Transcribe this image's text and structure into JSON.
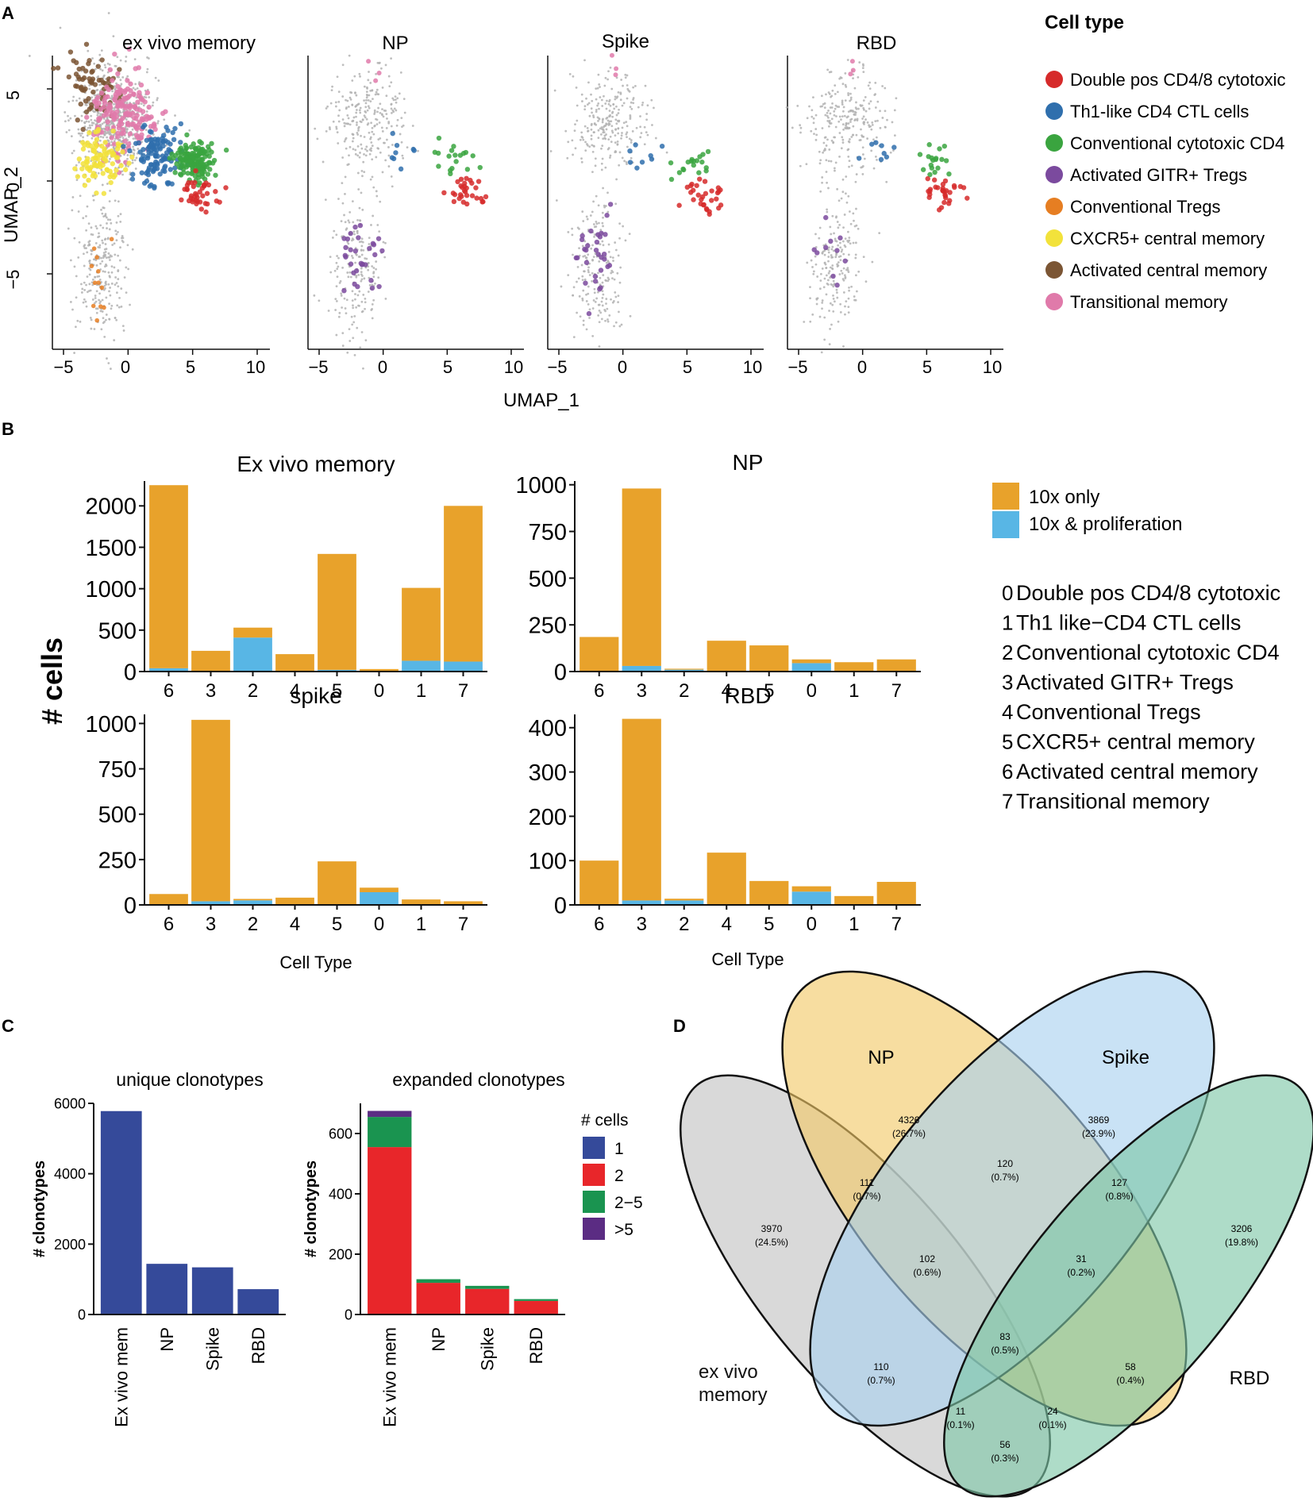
{
  "colors": {
    "celltypes": [
      "#d62a2a",
      "#2f6fad",
      "#3aa43f",
      "#7b4a9e",
      "#e67e22",
      "#f2e23b",
      "#7b5534",
      "#e07aaa"
    ],
    "background_cells": "#b3b3b3",
    "ten_x_only": "#e8a22b",
    "ten_x_prolif": "#58b6e5",
    "ncells_1": "#354a9a",
    "ncells_2": "#e8262a",
    "ncells_2_5": "#1a9450",
    "ncells_gt5": "#5b2c83",
    "unique_bar": "#354a9a",
    "venn_exvivo": "#c9c9c9",
    "venn_np": "#f2c866",
    "venn_spike": "#a8d0ef",
    "venn_rbd": "#7cc6a6"
  },
  "panels": {
    "a": "A",
    "b": "B",
    "c": "C",
    "d": "D"
  },
  "panel_a": {
    "titles": [
      "ex vivo memory",
      "NP",
      "Spike",
      "RBD"
    ],
    "xlabel": "UMAP_1",
    "ylabel": "UMAP_2",
    "xticks": [
      "−5",
      "0",
      "5",
      "10"
    ],
    "yticks": [
      "5",
      "0",
      "−5"
    ],
    "legend_title": "Cell type",
    "legend": [
      "Double pos CD4/8 cytotoxic",
      "Th1-like CD4 CTL cells",
      "Conventional cytotoxic CD4",
      "Activated GITR+ Tregs",
      "Conventional Tregs",
      "CXCR5+ central memory",
      "Activated central memory",
      "Transitional memory"
    ]
  },
  "panel_b": {
    "ylabel": "# cells",
    "xlabel": "Cell Type",
    "legend": [
      "10x only",
      "10x & proliferation"
    ],
    "key_numbers": [
      "0",
      "1",
      "2",
      "3",
      "4",
      "5",
      "6",
      "7"
    ],
    "key_names": [
      "Double pos CD4/8 cytotoxic",
      "Th1 like−CD4 CTL cells",
      "Conventional cytotoxic CD4",
      "Activated GITR+ Tregs",
      "Conventional Tregs",
      "CXCR5+ central memory",
      "Activated central memory",
      "Transitional memory"
    ]
  },
  "panel_c": {
    "legend_title": "# cells",
    "legend": [
      "1",
      "2",
      "2−5",
      ">5"
    ]
  },
  "panel_d": {
    "labels": [
      "NP",
      "Spike",
      "ex vivo memory",
      "RBD"
    ],
    "regions": [
      {
        "count": "4326",
        "pct": "(26.7%)"
      },
      {
        "count": "3869",
        "pct": "(23.9%)"
      },
      {
        "count": "120",
        "pct": "(0.7%)"
      },
      {
        "count": "111",
        "pct": "(0.7%)"
      },
      {
        "count": "127",
        "pct": "(0.8%)"
      },
      {
        "count": "3970",
        "pct": "(24.5%)"
      },
      {
        "count": "3206",
        "pct": "(19.8%)"
      },
      {
        "count": "102",
        "pct": "(0.6%)"
      },
      {
        "count": "31",
        "pct": "(0.2%)"
      },
      {
        "count": "83",
        "pct": "(0.5%)"
      },
      {
        "count": "110",
        "pct": "(0.7%)"
      },
      {
        "count": "58",
        "pct": "(0.4%)"
      },
      {
        "count": "11",
        "pct": "(0.1%)"
      },
      {
        "count": "24",
        "pct": "(0.1%)"
      },
      {
        "count": "56",
        "pct": "(0.3%)"
      }
    ]
  },
  "chart_data": [
    {
      "id": "b1",
      "type": "bar",
      "stacked": true,
      "title": "Ex vivo memory",
      "categories": [
        "6",
        "3",
        "2",
        "4",
        "5",
        "0",
        "1",
        "7"
      ],
      "series": [
        {
          "name": "10x & proliferation",
          "values": [
            40,
            0,
            410,
            0,
            20,
            0,
            130,
            120
          ]
        },
        {
          "name": "10x only",
          "values": [
            2210,
            250,
            120,
            210,
            1400,
            30,
            880,
            1880
          ]
        }
      ],
      "ylim": [
        0,
        2300
      ],
      "yticks": [
        0,
        500,
        1000,
        1500,
        2000
      ],
      "xlabel": "",
      "ylabel": "# cells"
    },
    {
      "id": "b2",
      "type": "bar",
      "stacked": true,
      "title": "NP",
      "categories": [
        "6",
        "3",
        "2",
        "4",
        "5",
        "0",
        "1",
        "7"
      ],
      "series": [
        {
          "name": "10x & proliferation",
          "values": [
            0,
            30,
            10,
            0,
            0,
            45,
            0,
            0
          ]
        },
        {
          "name": "10x only",
          "values": [
            185,
            950,
            5,
            165,
            140,
            20,
            50,
            65
          ]
        }
      ],
      "ylim": [
        0,
        1020
      ],
      "yticks": [
        0,
        250,
        500,
        750,
        1000
      ],
      "xlabel": "",
      "ylabel": "# cells"
    },
    {
      "id": "b3",
      "type": "bar",
      "stacked": true,
      "title": "spike",
      "categories": [
        "6",
        "3",
        "2",
        "4",
        "5",
        "0",
        "1",
        "7"
      ],
      "series": [
        {
          "name": "10x & proliferation",
          "values": [
            0,
            20,
            25,
            0,
            0,
            70,
            0,
            0
          ]
        },
        {
          "name": "10x only",
          "values": [
            60,
            1000,
            8,
            40,
            240,
            25,
            30,
            20
          ]
        }
      ],
      "ylim": [
        0,
        1050
      ],
      "yticks": [
        0,
        250,
        500,
        750,
        1000
      ],
      "xlabel": "Cell Type",
      "ylabel": "# cells"
    },
    {
      "id": "b4",
      "type": "bar",
      "stacked": true,
      "title": "RBD",
      "categories": [
        "6",
        "3",
        "2",
        "4",
        "5",
        "0",
        "1",
        "7"
      ],
      "series": [
        {
          "name": "10x & proliferation",
          "values": [
            0,
            10,
            10,
            0,
            0,
            30,
            0,
            0
          ]
        },
        {
          "name": "10x only",
          "values": [
            100,
            410,
            4,
            118,
            54,
            12,
            20,
            52
          ]
        }
      ],
      "ylim": [
        0,
        430
      ],
      "yticks": [
        0,
        100,
        200,
        300,
        400
      ],
      "xlabel": "Cell Type",
      "ylabel": "# cells"
    },
    {
      "id": "c1",
      "type": "bar",
      "title": "unique clonotypes",
      "categories": [
        "Ex vivo mem",
        "NP",
        "Spike",
        "RBD"
      ],
      "values": [
        5780,
        1440,
        1340,
        720
      ],
      "ylim": [
        0,
        6000
      ],
      "yticks": [
        0,
        2000,
        4000,
        6000
      ],
      "ylabel": "# clonotypes"
    },
    {
      "id": "c2",
      "type": "bar",
      "stacked": true,
      "title": "expanded clonotypes",
      "categories": [
        "Ex vivo mem",
        "NP",
        "Spike",
        "RBD"
      ],
      "series": [
        {
          "name": "1",
          "values": [
            0,
            0,
            0,
            0
          ]
        },
        {
          "name": "2",
          "values": [
            555,
            105,
            85,
            45
          ]
        },
        {
          "name": "2−5",
          "values": [
            100,
            12,
            10,
            6
          ]
        },
        {
          "name": ">5",
          "values": [
            20,
            0,
            0,
            0
          ]
        }
      ],
      "ylim": [
        0,
        700
      ],
      "yticks": [
        0,
        200,
        400,
        600
      ],
      "ylabel": "# clonotypes"
    }
  ]
}
